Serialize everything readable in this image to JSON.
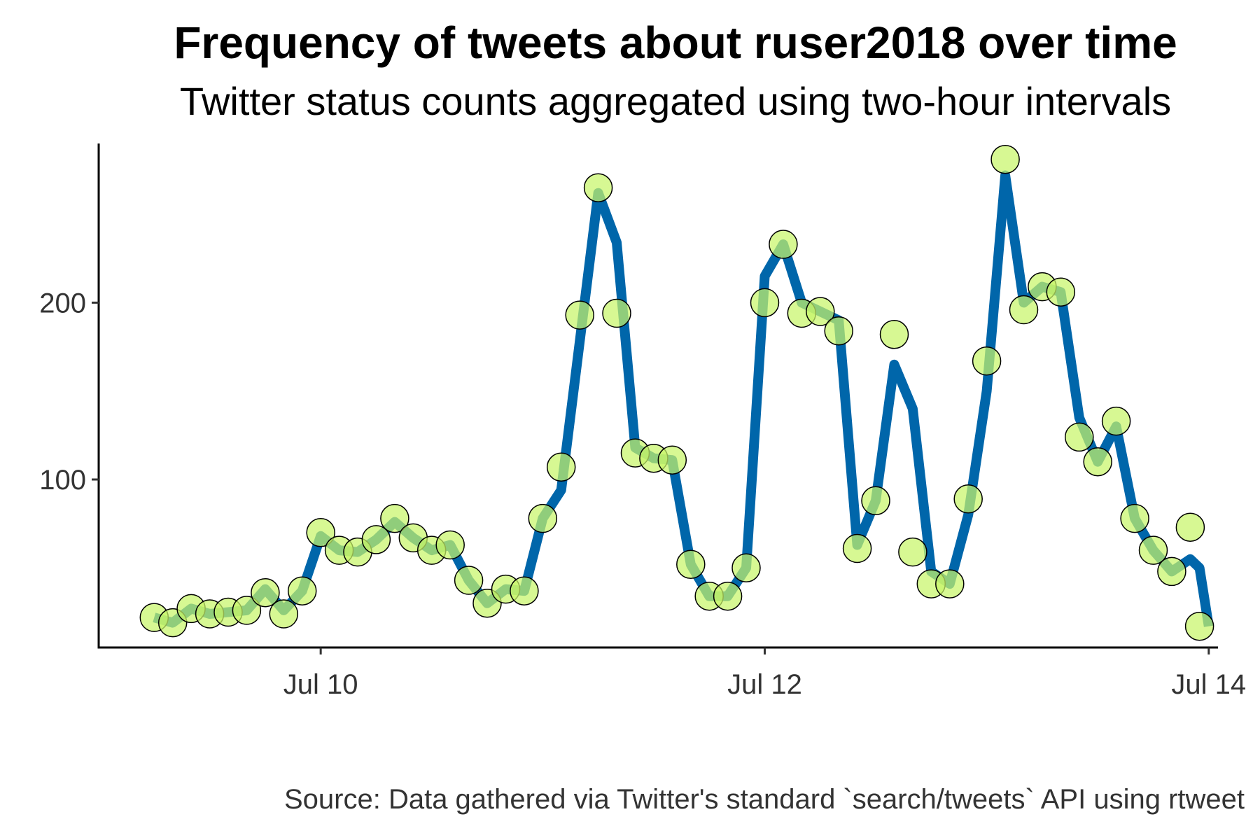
{
  "chart_data": {
    "type": "line",
    "title": "Frequency of tweets about ruser2018 over time",
    "subtitle": "Twitter status counts aggregated using two-hour intervals",
    "caption": "Source: Data gathered via Twitter's standard `search/tweets` API using rtweet",
    "xlabel": "",
    "ylabel": "",
    "x_ticks": [
      "Jul 10",
      "Jul 12",
      "Jul 14"
    ],
    "x_tick_values": [
      "2018-07-10",
      "2018-07-12",
      "2018-07-14"
    ],
    "x_range": [
      "2018-07-09 00:00",
      "2018-07-14 01:00"
    ],
    "y_ticks": [
      100,
      200
    ],
    "ylim": [
      5,
      290
    ],
    "grid": false,
    "series": [
      {
        "x": [
          "2018-07-09 06:00",
          "2018-07-09 08:00",
          "2018-07-09 10:00",
          "2018-07-09 12:00",
          "2018-07-09 14:00",
          "2018-07-09 16:00",
          "2018-07-09 18:00",
          "2018-07-09 20:00",
          "2018-07-09 22:00",
          "2018-07-10 00:00",
          "2018-07-10 02:00",
          "2018-07-10 04:00",
          "2018-07-10 06:00",
          "2018-07-10 08:00",
          "2018-07-10 10:00",
          "2018-07-10 12:00",
          "2018-07-10 14:00",
          "2018-07-10 16:00",
          "2018-07-10 18:00",
          "2018-07-10 20:00",
          "2018-07-10 22:00",
          "2018-07-11 00:00",
          "2018-07-11 02:00",
          "2018-07-11 04:00",
          "2018-07-11 06:00",
          "2018-07-11 08:00",
          "2018-07-11 10:00",
          "2018-07-11 12:00",
          "2018-07-11 14:00",
          "2018-07-11 16:00",
          "2018-07-11 18:00",
          "2018-07-11 20:00",
          "2018-07-11 22:00",
          "2018-07-12 00:00",
          "2018-07-12 02:00",
          "2018-07-12 04:00",
          "2018-07-12 06:00",
          "2018-07-12 08:00",
          "2018-07-12 10:00",
          "2018-07-12 12:00",
          "2018-07-12 14:00",
          "2018-07-12 16:00",
          "2018-07-12 18:00",
          "2018-07-12 20:00",
          "2018-07-12 22:00",
          "2018-07-13 00:00",
          "2018-07-13 02:00",
          "2018-07-13 04:00",
          "2018-07-13 06:00",
          "2018-07-13 08:00",
          "2018-07-13 10:00",
          "2018-07-13 12:00",
          "2018-07-13 14:00",
          "2018-07-13 16:00",
          "2018-07-13 18:00",
          "2018-07-13 20:00",
          "2018-07-13 22:00",
          "2018-07-13 23:00"
        ],
        "y": [
          22,
          19,
          27,
          24,
          25,
          26,
          36,
          24,
          37,
          70,
          60,
          59,
          66,
          78,
          67,
          60,
          63,
          43,
          30,
          38,
          37,
          78,
          107,
          193,
          265,
          194,
          115,
          112,
          111,
          52,
          34,
          34,
          50,
          200,
          233,
          194,
          195,
          184,
          61,
          88,
          182,
          59,
          41,
          41,
          89,
          167,
          281,
          196,
          209,
          206,
          124,
          110,
          133,
          78,
          60,
          48,
          73,
          17
        ],
        "line": [
          22,
          19,
          27,
          24,
          25,
          26,
          38,
          26,
          37,
          68,
          60,
          59,
          66,
          76,
          67,
          60,
          63,
          43,
          30,
          38,
          37,
          78,
          94,
          178,
          262,
          234,
          118,
          112,
          111,
          52,
          34,
          34,
          50,
          215,
          233,
          200,
          195,
          190,
          63,
          88,
          165,
          140,
          48,
          41,
          80,
          150,
          272,
          200,
          209,
          206,
          135,
          110,
          130,
          78,
          60,
          48,
          55,
          50,
          17
        ],
        "line_x": [
          "2018-07-09 06:00",
          "2018-07-09 08:00",
          "2018-07-09 10:00",
          "2018-07-09 12:00",
          "2018-07-09 14:00",
          "2018-07-09 16:00",
          "2018-07-09 18:00",
          "2018-07-09 20:00",
          "2018-07-09 22:00",
          "2018-07-10 00:00",
          "2018-07-10 02:00",
          "2018-07-10 04:00",
          "2018-07-10 06:00",
          "2018-07-10 08:00",
          "2018-07-10 10:00",
          "2018-07-10 12:00",
          "2018-07-10 14:00",
          "2018-07-10 16:00",
          "2018-07-10 18:00",
          "2018-07-10 20:00",
          "2018-07-10 22:00",
          "2018-07-11 00:00",
          "2018-07-11 02:00",
          "2018-07-11 04:00",
          "2018-07-11 06:00",
          "2018-07-11 08:00",
          "2018-07-11 10:00",
          "2018-07-11 12:00",
          "2018-07-11 14:00",
          "2018-07-11 16:00",
          "2018-07-11 18:00",
          "2018-07-11 20:00",
          "2018-07-11 22:00",
          "2018-07-12 00:00",
          "2018-07-12 02:00",
          "2018-07-12 04:00",
          "2018-07-12 06:00",
          "2018-07-12 08:00",
          "2018-07-12 10:00",
          "2018-07-12 12:00",
          "2018-07-12 14:00",
          "2018-07-12 16:00",
          "2018-07-12 18:00",
          "2018-07-12 20:00",
          "2018-07-12 22:00",
          "2018-07-13 00:00",
          "2018-07-13 02:00",
          "2018-07-13 04:00",
          "2018-07-13 06:00",
          "2018-07-13 08:00",
          "2018-07-13 10:00",
          "2018-07-13 12:00",
          "2018-07-13 14:00",
          "2018-07-13 16:00",
          "2018-07-13 18:00",
          "2018-07-13 20:00",
          "2018-07-13 22:00",
          "2018-07-13 23:00",
          "2018-07-14 00:00"
        ]
      }
    ],
    "colors": {
      "line": "#0066aa",
      "point_fill": "#c8f56a",
      "point_stroke": "#000000"
    }
  }
}
